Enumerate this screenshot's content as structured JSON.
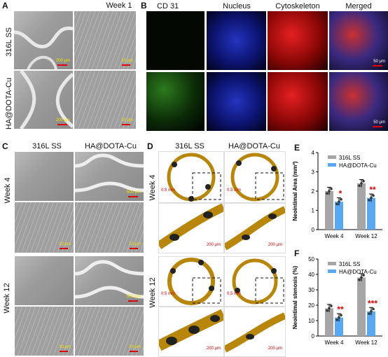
{
  "panels": {
    "A": "A",
    "B": "B",
    "C": "C",
    "D": "D",
    "E": "E",
    "F": "F"
  },
  "panelA": {
    "week": "Week 1",
    "rows": [
      "316L SS",
      "HA@DOTA-Cu"
    ],
    "scalebars": [
      "200 μm",
      "10 μm",
      "200 μm",
      "10 μm"
    ]
  },
  "panelB": {
    "columns": [
      "CD 31",
      "Nucleus",
      "Cytoskeleton",
      "Merged"
    ],
    "scalebars": [
      "50 μm",
      "50 μm"
    ],
    "colors": {
      "cd31": "#1f8a1a",
      "nucleus": "#1a2bd6",
      "cytoskeleton": "#e01b1b"
    }
  },
  "panelC": {
    "columns": [
      "316L SS",
      "HA@DOTA-Cu"
    ],
    "rows": [
      "Week 4",
      "Week 12"
    ],
    "scalebars": [
      "500 μm",
      "10 μm",
      "10 μm",
      "500 μm",
      "10 μm",
      "10 μm"
    ]
  },
  "panelD": {
    "columns": [
      "316L SS",
      "HA@DOTA-Cu"
    ],
    "rows": [
      "Week 4",
      "Week 12"
    ],
    "scalebars": [
      "0.5 mm",
      "0.5 mm",
      "200 μm",
      "200 μm",
      "0.5 mm",
      "0.5 mm",
      "200 μm",
      "200 μm"
    ]
  },
  "chart_data": [
    {
      "type": "bar",
      "panel": "E",
      "ylabel": "Neointimal Area (mm²)",
      "ylim": [
        0,
        4
      ],
      "yticks": [
        0,
        1,
        2,
        3,
        4
      ],
      "categories": [
        "Week 4",
        "Week 12"
      ],
      "series": [
        {
          "name": "316L SS",
          "color": "#a6a6a6",
          "values": [
            2.0,
            2.4
          ]
        },
        {
          "name": "HA@DOTA-Cu",
          "color": "#5aa9f0",
          "values": [
            1.45,
            1.65
          ]
        }
      ],
      "significance": [
        {
          "category": "Week 4",
          "label": "*"
        },
        {
          "category": "Week 12",
          "label": "**"
        }
      ],
      "legend": "top-right"
    },
    {
      "type": "bar",
      "panel": "F",
      "ylabel": "Neointimal stenosis (%)",
      "ylim": [
        0,
        50
      ],
      "yticks": [
        0,
        10,
        20,
        30,
        40,
        50
      ],
      "categories": [
        "Week 4",
        "Week 12"
      ],
      "series": [
        {
          "name": "316L SS",
          "color": "#a6a6a6",
          "values": [
            18,
            38
          ]
        },
        {
          "name": "HA@DOTA-Cu",
          "color": "#5aa9f0",
          "values": [
            12,
            16
          ]
        }
      ],
      "significance": [
        {
          "category": "Week 4",
          "label": "**"
        },
        {
          "category": "Week 12",
          "label": "***"
        }
      ],
      "legend": "top-right"
    }
  ]
}
